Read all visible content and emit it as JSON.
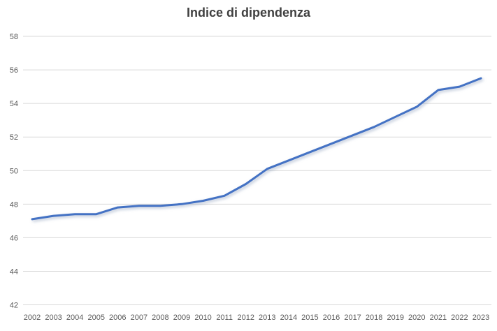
{
  "chart_data": {
    "type": "line",
    "title": "Indice di dipendenza",
    "x": [
      "2002",
      "2003",
      "2004",
      "2005",
      "2006",
      "2007",
      "2008",
      "2009",
      "2010",
      "2011",
      "2012",
      "2013",
      "2014",
      "2015",
      "2016",
      "2017",
      "2018",
      "2019",
      "2020",
      "2021",
      "2022",
      "2023"
    ],
    "series": [
      {
        "name": "Indice di dipendenza",
        "values": [
          47.1,
          47.3,
          47.4,
          47.4,
          47.8,
          47.9,
          47.9,
          48.0,
          48.2,
          48.5,
          49.2,
          50.1,
          50.6,
          51.1,
          51.6,
          52.1,
          52.6,
          53.2,
          53.8,
          54.8,
          55.0,
          55.5
        ]
      }
    ],
    "xlabel": "",
    "ylabel": "",
    "ylim": [
      42,
      58
    ],
    "ytick_step": 2,
    "ytick_labels": [
      "42",
      "44",
      "46",
      "48",
      "50",
      "52",
      "54",
      "56",
      "58"
    ],
    "grid": "horizontal",
    "legend_position": "none",
    "colors": {
      "line": "#4472C4",
      "gridline": "#d9d9d9",
      "tick_label": "#595959",
      "title": "#404040",
      "background": "#ffffff"
    }
  }
}
